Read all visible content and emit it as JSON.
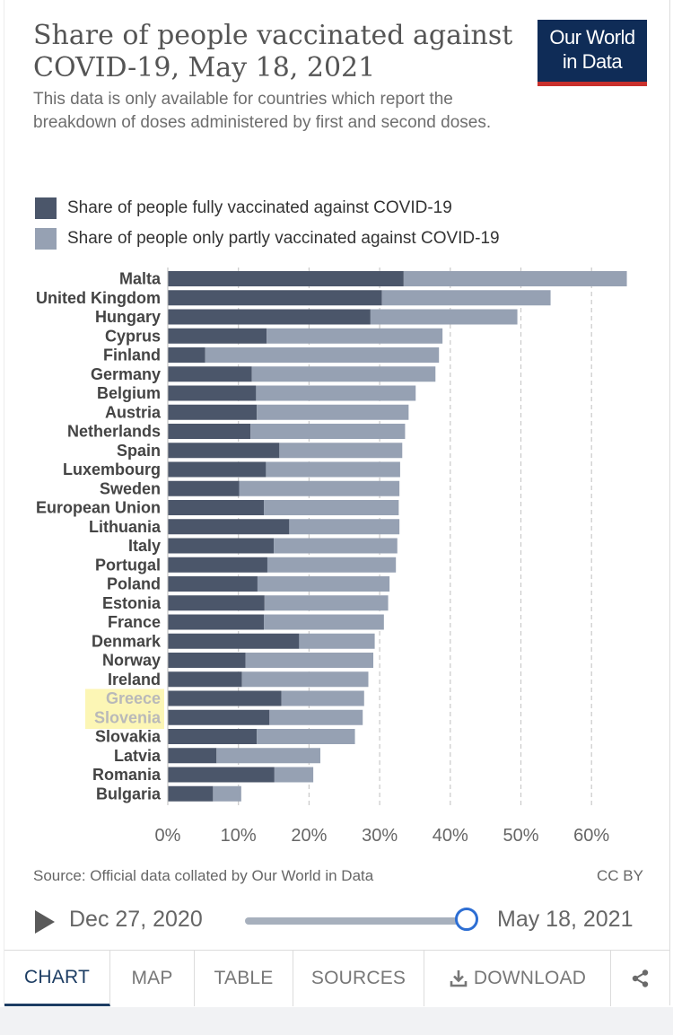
{
  "header": {
    "title": "Share of people vaccinated against COVID-19, May 18, 2021",
    "subtitle": "This data is only available for countries which report the breakdown of doses administered by first and second doses.",
    "logo_line1": "Our World",
    "logo_line2": "in Data"
  },
  "legend": {
    "items": [
      {
        "label": "Share of people fully vaccinated against COVID-19",
        "color": "#4b566a"
      },
      {
        "label": "Share of people only partly vaccinated against COVID-19",
        "color": "#96a1b3"
      }
    ]
  },
  "chart_data": {
    "type": "bar",
    "orientation": "horizontal",
    "stacked": true,
    "categories": [
      "Malta",
      "United Kingdom",
      "Hungary",
      "Cyprus",
      "Finland",
      "Germany",
      "Belgium",
      "Austria",
      "Netherlands",
      "Spain",
      "Luxembourg",
      "Sweden",
      "European Union",
      "Lithuania",
      "Italy",
      "Portugal",
      "Poland",
      "Estonia",
      "France",
      "Denmark",
      "Norway",
      "Ireland",
      "Greece",
      "Slovenia",
      "Slovakia",
      "Latvia",
      "Romania",
      "Bulgaria"
    ],
    "series": [
      {
        "name": "Share of people fully vaccinated against COVID-19",
        "color": "#4b566a",
        "values": [
          33.4,
          30.3,
          28.7,
          14.0,
          5.3,
          11.9,
          12.5,
          12.6,
          11.7,
          15.8,
          13.9,
          10.1,
          13.6,
          17.2,
          15.0,
          14.1,
          12.7,
          13.7,
          13.6,
          18.6,
          11.0,
          10.5,
          16.1,
          14.4,
          12.6,
          6.9,
          15.1,
          6.4
        ]
      },
      {
        "name": "Share of people only partly vaccinated against COVID-19",
        "color": "#96a1b3",
        "values": [
          31.6,
          23.9,
          20.8,
          24.9,
          33.1,
          26.0,
          22.6,
          21.5,
          21.9,
          17.4,
          19.0,
          22.7,
          19.1,
          15.6,
          17.5,
          18.2,
          18.7,
          17.5,
          17.0,
          10.7,
          18.1,
          17.9,
          11.7,
          13.2,
          13.9,
          14.7,
          5.5,
          4.0
        ]
      }
    ],
    "highlighted": [
      "Greece",
      "Slovenia"
    ],
    "x_ticks": [
      "0%",
      "10%",
      "20%",
      "30%",
      "40%",
      "50%",
      "60%"
    ],
    "xlim": [
      0,
      65
    ],
    "grid": "vertical-dashed"
  },
  "footer": {
    "source": "Source: Official data collated by Our World in Data",
    "license": "CC BY"
  },
  "timeline": {
    "start_date": "Dec 27, 2020",
    "end_date": "May 18, 2021"
  },
  "tabs": {
    "chart": "CHART",
    "map": "MAP",
    "table": "TABLE",
    "sources": "SOURCES",
    "download": "DOWNLOAD"
  }
}
